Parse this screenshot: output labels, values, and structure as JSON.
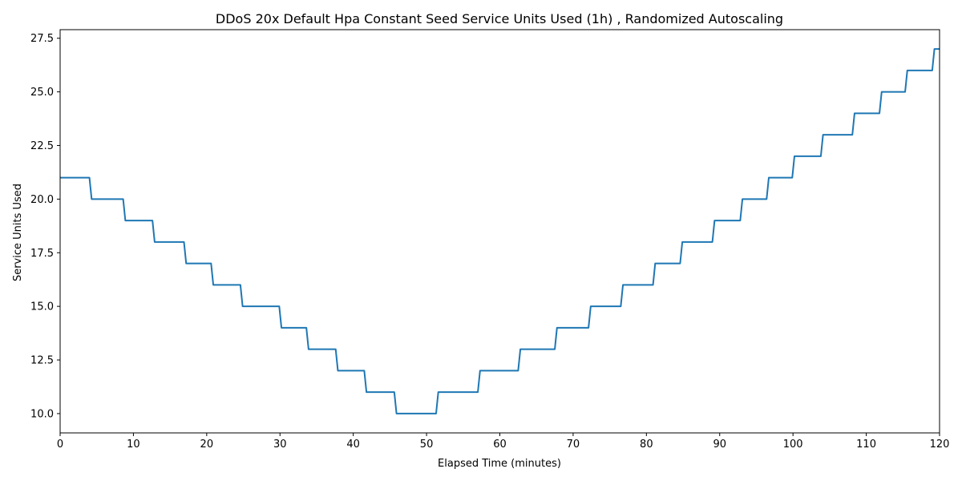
{
  "chart_data": {
    "type": "line",
    "title": "DDoS 20x Default Hpa Constant Seed Service Units Used (1h) , Randomized Autoscaling",
    "xlabel": "Elapsed Time (minutes)",
    "ylabel": "Service Units Used",
    "xlim": [
      0,
      120
    ],
    "ylim": [
      9.1,
      27.9
    ],
    "xticks": [
      0,
      10,
      20,
      30,
      40,
      50,
      60,
      70,
      80,
      90,
      100,
      110,
      120
    ],
    "yticks": [
      10.0,
      12.5,
      15.0,
      17.5,
      20.0,
      22.5,
      25.0,
      27.5
    ],
    "xtick_labels": [
      "0",
      "10",
      "20",
      "30",
      "40",
      "50",
      "60",
      "70",
      "80",
      "90",
      "100",
      "110",
      "120"
    ],
    "ytick_labels": [
      "10.0",
      "12.5",
      "15.0",
      "17.5",
      "20.0",
      "22.5",
      "25.0",
      "27.5"
    ],
    "grid": false,
    "legend": "none",
    "color": "#1f77b4",
    "series": [
      {
        "x": [
          0,
          4.0,
          4.3,
          8.6,
          8.9,
          12.6,
          12.9,
          16.9,
          17.2,
          20.6,
          20.9,
          24.6,
          24.9,
          29.9,
          30.2,
          33.6,
          33.9,
          37.6,
          37.9,
          41.5,
          41.8,
          45.6,
          45.9,
          51.3,
          51.6,
          57.0,
          57.3,
          62.5,
          62.8,
          67.5,
          67.8,
          72.1,
          72.4,
          76.5,
          76.8,
          80.9,
          81.2,
          84.6,
          84.9,
          89.0,
          89.3,
          92.8,
          93.1,
          96.4,
          96.7,
          99.9,
          100.2,
          103.8,
          104.1,
          108.1,
          108.4,
          111.8,
          112.1,
          115.3,
          115.6,
          119.0,
          119.3,
          120.0
        ],
        "y": [
          21,
          21,
          20,
          20,
          19,
          19,
          18,
          18,
          17,
          17,
          16,
          16,
          15,
          15,
          14,
          14,
          13,
          13,
          12,
          12,
          11,
          11,
          10,
          10,
          11,
          11,
          12,
          12,
          13,
          13,
          14,
          14,
          15,
          15,
          16,
          16,
          17,
          17,
          18,
          18,
          19,
          19,
          20,
          20,
          21,
          21,
          22,
          22,
          23,
          23,
          24,
          24,
          25,
          25,
          26,
          26,
          27,
          27
        ]
      }
    ]
  }
}
